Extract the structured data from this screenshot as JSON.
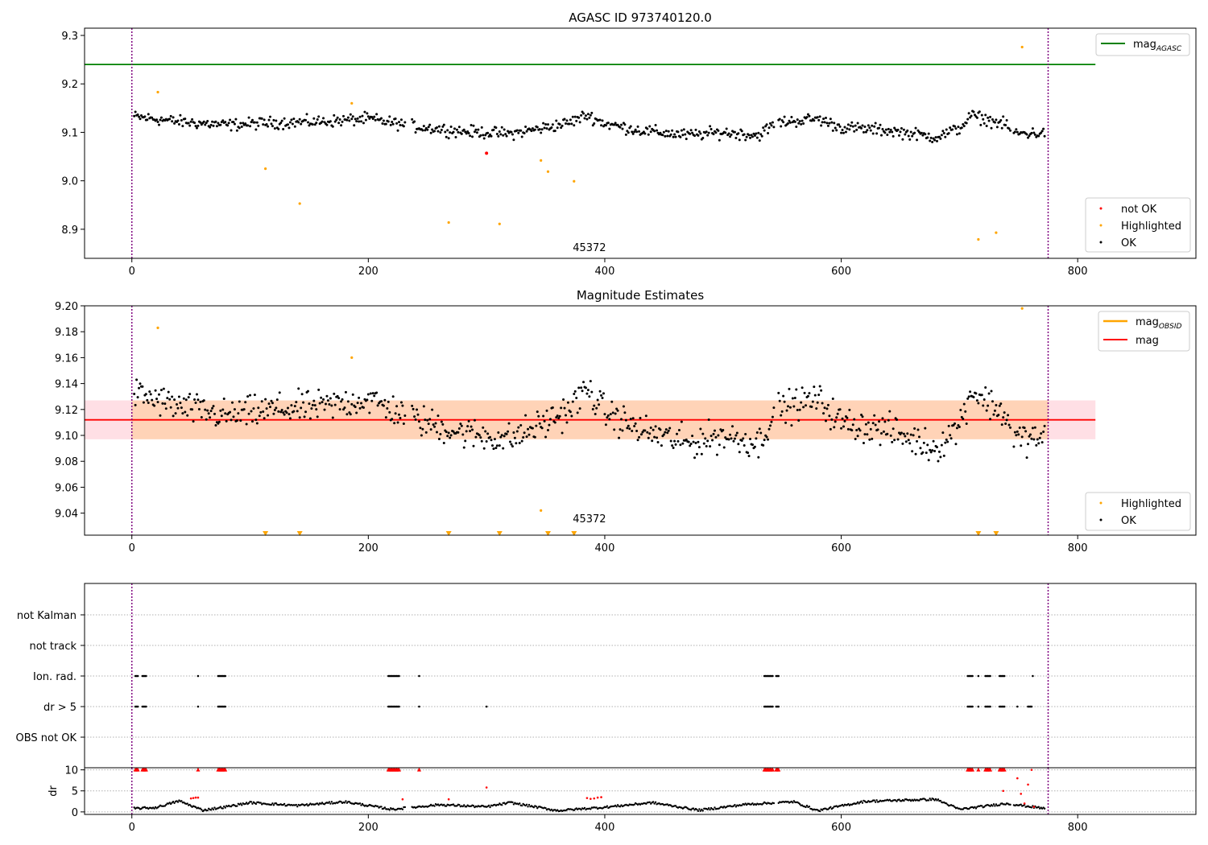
{
  "chart_data": [
    {
      "type": "scatter",
      "title": "AGASC ID 973740120.0",
      "xlim": [
        -40,
        900
      ],
      "ylim": [
        8.84,
        9.315
      ],
      "xticks": [
        0,
        200,
        400,
        600,
        800
      ],
      "yticks": [
        8.9,
        9.0,
        9.1,
        9.2,
        9.3
      ],
      "annotation": {
        "text": "45372",
        "x": 387,
        "y": 8.855
      },
      "vlines": [
        0,
        775
      ],
      "lines": [
        {
          "name": "mag",
          "subscript": "AGASC",
          "y": 9.24,
          "x": [
            -40,
            815
          ],
          "color": "#008000"
        }
      ],
      "legend_lines": {
        "location": "upper right",
        "entries": [
          {
            "name": "mag",
            "subscript": "AGASC",
            "color": "#008000"
          }
        ]
      },
      "legend_points": {
        "location": "lower right",
        "entries": [
          {
            "name": "not OK",
            "color": "#ff0000"
          },
          {
            "name": "Highlighted",
            "color": "#ffa500"
          },
          {
            "name": "OK",
            "color": "#000000"
          }
        ]
      },
      "series": [
        {
          "name": "OK",
          "color": "#000000",
          "profile": [
            [
              0,
              9.133
            ],
            [
              40,
              9.122
            ],
            [
              80,
              9.115
            ],
            [
              120,
              9.12
            ],
            [
              160,
              9.122
            ],
            [
              200,
              9.128
            ],
            [
              240,
              9.112
            ],
            [
              280,
              9.102
            ],
            [
              320,
              9.097
            ],
            [
              350,
              9.11
            ],
            [
              370,
              9.12
            ],
            [
              385,
              9.136
            ],
            [
              400,
              9.118
            ],
            [
              430,
              9.104
            ],
            [
              470,
              9.094
            ],
            [
              500,
              9.1
            ],
            [
              530,
              9.094
            ],
            [
              545,
              9.12
            ],
            [
              580,
              9.128
            ],
            [
              600,
              9.11
            ],
            [
              640,
              9.104
            ],
            [
              680,
              9.09
            ],
            [
              700,
              9.108
            ],
            [
              710,
              9.135
            ],
            [
              740,
              9.115
            ],
            [
              745,
              9.098
            ],
            [
              775,
              9.098
            ]
          ],
          "spread": 0.012
        },
        {
          "name": "not OK",
          "color": "#ff0000",
          "points": [
            [
              300,
              9.057
            ]
          ]
        },
        {
          "name": "Highlighted",
          "color": "#ffa500",
          "points": [
            [
              22,
              9.183
            ],
            [
              113,
              9.025
            ],
            [
              142,
              8.953
            ],
            [
              186,
              9.16
            ],
            [
              268,
              8.914
            ],
            [
              311,
              8.911
            ],
            [
              346,
              9.042
            ],
            [
              352,
              9.019
            ],
            [
              374,
              8.999
            ],
            [
              716,
              8.879
            ],
            [
              731,
              8.893
            ],
            [
              753,
              9.276
            ]
          ]
        }
      ]
    },
    {
      "type": "scatter",
      "title": "Magnitude Estimates",
      "xlim": [
        -40,
        900
      ],
      "ylim": [
        9.023,
        9.2
      ],
      "xticks": [
        0,
        200,
        400,
        600,
        800
      ],
      "yticks": [
        9.04,
        9.06,
        9.08,
        9.1,
        9.12,
        9.14,
        9.16,
        9.18,
        9.2
      ],
      "annotation": {
        "text": "45372",
        "x": 387,
        "y": 9.028
      },
      "vlines": [
        0,
        775
      ],
      "mag": {
        "value": 9.112,
        "band": [
          9.097,
          9.127
        ],
        "x": [
          -40,
          815
        ],
        "color": "#ff0000",
        "band_color": "#ffc0cb"
      },
      "mag_obsid": {
        "x": [
          0,
          775
        ],
        "band": [
          9.097,
          9.127
        ],
        "color": "#ffa500"
      },
      "legend_lines": {
        "location": "upper right",
        "entries": [
          {
            "name": "mag",
            "subscript": "OBSID",
            "color": "#ffa500"
          },
          {
            "name": "mag",
            "subscript": "",
            "color": "#ff0000"
          }
        ]
      },
      "legend_points": {
        "location": "lower right",
        "entries": [
          {
            "name": "Highlighted",
            "color": "#ffa500"
          },
          {
            "name": "OK",
            "color": "#000000"
          }
        ]
      },
      "series": [
        {
          "name": "OK",
          "color": "#000000",
          "profile": [
            [
              0,
              9.133
            ],
            [
              40,
              9.122
            ],
            [
              80,
              9.115
            ],
            [
              120,
              9.12
            ],
            [
              160,
              9.122
            ],
            [
              200,
              9.128
            ],
            [
              240,
              9.112
            ],
            [
              280,
              9.102
            ],
            [
              320,
              9.097
            ],
            [
              350,
              9.11
            ],
            [
              370,
              9.12
            ],
            [
              385,
              9.136
            ],
            [
              400,
              9.118
            ],
            [
              430,
              9.104
            ],
            [
              470,
              9.094
            ],
            [
              500,
              9.1
            ],
            [
              530,
              9.094
            ],
            [
              545,
              9.12
            ],
            [
              580,
              9.128
            ],
            [
              600,
              9.11
            ],
            [
              640,
              9.104
            ],
            [
              680,
              9.09
            ],
            [
              700,
              9.108
            ],
            [
              710,
              9.135
            ],
            [
              740,
              9.115
            ],
            [
              745,
              9.098
            ],
            [
              775,
              9.098
            ]
          ],
          "spread": 0.012
        },
        {
          "name": "Highlighted",
          "color": "#ffa500",
          "points": [
            [
              22,
              9.183
            ],
            [
              186,
              9.16
            ],
            [
              346,
              9.042
            ],
            [
              753,
              9.198
            ]
          ]
        },
        {
          "name": "Highlighted (below axis)",
          "color": "#ffa500",
          "x": [
            113,
            142,
            268,
            311,
            352,
            374,
            716,
            731
          ]
        }
      ]
    },
    {
      "type": "scatter",
      "title": "",
      "xlim": [
        -40,
        900
      ],
      "xticks": [
        0,
        200,
        400,
        600,
        800
      ],
      "vlines": [
        0,
        775
      ],
      "flag_rows": [
        "not Kalman",
        "not track",
        "Ion. rad.",
        "dr > 5",
        "OBS not OK"
      ],
      "flags": {
        "Ion. rad.": [
          [
            3,
            5
          ],
          [
            9,
            12
          ],
          [
            56,
            56
          ],
          [
            73,
            79
          ],
          [
            217,
            226
          ],
          [
            243,
            243
          ],
          [
            535,
            542
          ],
          [
            545,
            547
          ],
          [
            707,
            711
          ],
          [
            716,
            716
          ],
          [
            722,
            726
          ],
          [
            734,
            738
          ],
          [
            762,
            762
          ]
        ],
        "dr > 5": [
          [
            3,
            5
          ],
          [
            9,
            12
          ],
          [
            56,
            56
          ],
          [
            73,
            79
          ],
          [
            217,
            226
          ],
          [
            243,
            243
          ],
          [
            300,
            300
          ],
          [
            535,
            542
          ],
          [
            545,
            547
          ],
          [
            707,
            711
          ],
          [
            716,
            716
          ],
          [
            722,
            726
          ],
          [
            734,
            738
          ],
          [
            749,
            749
          ],
          [
            758,
            761
          ]
        ]
      },
      "dr": {
        "ylabel": "dr",
        "yticks": [
          0,
          5,
          10
        ],
        "ylim": [
          -0.6,
          10.5
        ],
        "cap": 10,
        "profile": [
          [
            0,
            0.8
          ],
          [
            20,
            1.0
          ],
          [
            40,
            2.6
          ],
          [
            60,
            0.4
          ],
          [
            80,
            1.2
          ],
          [
            100,
            2.2
          ],
          [
            140,
            1.5
          ],
          [
            180,
            2.4
          ],
          [
            220,
            0.6
          ],
          [
            260,
            1.7
          ],
          [
            300,
            1.2
          ],
          [
            320,
            2.2
          ],
          [
            360,
            0.3
          ],
          [
            400,
            1.1
          ],
          [
            440,
            2.2
          ],
          [
            480,
            0.4
          ],
          [
            520,
            1.8
          ],
          [
            560,
            2.4
          ],
          [
            580,
            0.3
          ],
          [
            620,
            2.5
          ],
          [
            680,
            3.0
          ],
          [
            700,
            0.6
          ],
          [
            740,
            2.0
          ],
          [
            775,
            0.7
          ]
        ],
        "not_ok_ranges": [
          [
            3,
            5
          ],
          [
            9,
            12
          ],
          [
            56,
            56
          ],
          [
            73,
            79
          ],
          [
            217,
            226
          ],
          [
            243,
            243
          ],
          [
            535,
            542
          ],
          [
            545,
            547
          ],
          [
            707,
            711
          ],
          [
            716,
            716
          ],
          [
            722,
            726
          ],
          [
            734,
            738
          ]
        ],
        "not_ok_points": [
          [
            50,
            3.2
          ],
          [
            52,
            3.3
          ],
          [
            54,
            3.4
          ],
          [
            56,
            3.4
          ],
          [
            229,
            3.0
          ],
          [
            268,
            3.0
          ],
          [
            300,
            5.8
          ],
          [
            385,
            3.3
          ],
          [
            388,
            3.1
          ],
          [
            391,
            3.2
          ],
          [
            394,
            3.4
          ],
          [
            397,
            3.5
          ],
          [
            737,
            5.0
          ],
          [
            749,
            8.0
          ],
          [
            752,
            4.3
          ],
          [
            755,
            2.0
          ],
          [
            758,
            6.5
          ],
          [
            761,
            10.0
          ],
          [
            763,
            1.2
          ]
        ]
      }
    }
  ]
}
